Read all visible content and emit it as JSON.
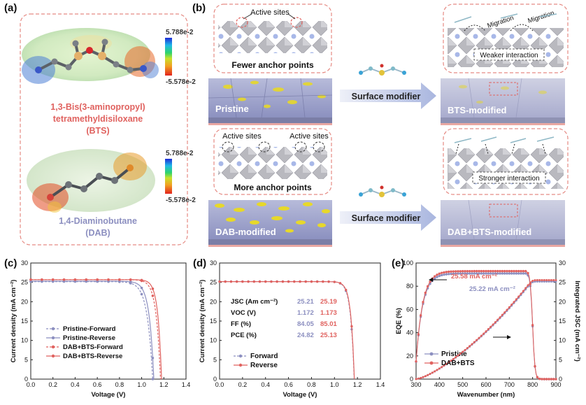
{
  "figure": {
    "panel_a": {
      "label": "(a)",
      "molecule1": {
        "name_lines": [
          "1,3-Bis(3-aminopropyl)",
          "tetramethyldisiloxane",
          "(BTS)"
        ],
        "scale_max": "5.788e-2",
        "scale_min": "-5.578e-2",
        "color": "#e0625f"
      },
      "molecule2": {
        "name_lines": [
          "1,4-Diaminobutane",
          "(DAB)"
        ],
        "scale_max": "5.788e-2",
        "scale_min": "-5.578e-2",
        "color": "#8c8fc0"
      }
    },
    "panel_b": {
      "label": "(b)",
      "top_left": {
        "callout": "Active sites",
        "caption": "Fewer anchor points",
        "slab": "Pristine"
      },
      "arrow_label": "Surface modifier",
      "top_right": {
        "migration_labels": [
          "Migration",
          "Migration"
        ],
        "caption": "Weaker interaction",
        "slab": "BTS-modified"
      },
      "bottom_left": {
        "callouts": [
          "Active sites",
          "Active sites"
        ],
        "caption": "More anchor points",
        "slab": "DAB-modified"
      },
      "bottom_right": {
        "caption": "Stronger interaction",
        "slab": "DAB+BTS-modified"
      }
    }
  },
  "chart_data": [
    {
      "panel": "(c)",
      "type": "line",
      "xlabel": "Voltage (V)",
      "ylabel": "Current density (mA cm⁻²)",
      "xlim": [
        0,
        1.4
      ],
      "ylim": [
        0,
        30
      ],
      "xticks": [
        "0.0",
        "0.2",
        "0.4",
        "0.6",
        "0.8",
        "1.0",
        "1.2",
        "1.4"
      ],
      "yticks": [
        "0",
        "5",
        "10",
        "15",
        "20",
        "25",
        "30"
      ],
      "legend_position": "lower-left",
      "series": [
        {
          "name": "Pristine-Forward",
          "color": "#8c8fc0",
          "dash": true,
          "jsc": 25.2,
          "voc": 1.1,
          "n": 1.9
        },
        {
          "name": "Pristine-Reverse",
          "color": "#8c8fc0",
          "dash": false,
          "jsc": 25.3,
          "voc": 1.11,
          "n": 1.6
        },
        {
          "name": "DAB+BTS-Forward",
          "color": "#e0625f",
          "dash": true,
          "jsc": 25.7,
          "voc": 1.17,
          "n": 1.5
        },
        {
          "name": "DAB+BTS-Reverse",
          "color": "#e0625f",
          "dash": false,
          "jsc": 25.7,
          "voc": 1.18,
          "n": 1.3
        }
      ]
    },
    {
      "panel": "(d)",
      "type": "line",
      "xlabel": "Voltage (V)",
      "ylabel": "Current density (mA cm⁻²)",
      "xlim": [
        0,
        1.4
      ],
      "ylim": [
        0,
        30
      ],
      "xticks": [
        "0.0",
        "0.2",
        "0.4",
        "0.6",
        "0.8",
        "1.0",
        "1.2",
        "1.4"
      ],
      "yticks": [
        "0",
        "5",
        "10",
        "15",
        "20",
        "25",
        "30"
      ],
      "legend_position": "lower-left",
      "series": [
        {
          "name": "Forward",
          "color": "#8c8fc0",
          "dash": true,
          "jsc": 25.21,
          "voc": 1.172,
          "n": 1.2
        },
        {
          "name": "Reverse",
          "color": "#e0625f",
          "dash": false,
          "jsc": 25.19,
          "voc": 1.173,
          "n": 1.15
        }
      ],
      "table": {
        "rows": [
          {
            "label": "JSC (Am cm⁻²)",
            "v1": "25.21",
            "v2": "25.19"
          },
          {
            "label": "VOC (V)",
            "v1": "1.172",
            "v2": "1.173"
          },
          {
            "label": "FF (%)",
            "v1": "84.05",
            "v2": "85.01"
          },
          {
            "label": "PCE (%)",
            "v1": "24.82",
            "v2": "25.13"
          }
        ]
      }
    },
    {
      "panel": "(e)",
      "type": "line",
      "xlabel": "Wavenumber (nm)",
      "ylabel": "EQE (%)",
      "ylabel_right": "Integrated JSC (mA cm⁻²)",
      "xlim": [
        300,
        900
      ],
      "ylim": [
        0,
        100
      ],
      "ylim_right": [
        0,
        30
      ],
      "xticks": [
        "300",
        "400",
        "500",
        "600",
        "700",
        "800",
        "900"
      ],
      "yticks": [
        "0",
        "20",
        "40",
        "60",
        "80",
        "100"
      ],
      "yticks_right": [
        "0",
        "5",
        "10",
        "15",
        "20",
        "25",
        "30"
      ],
      "legend_position": "lower-left",
      "annotations": [
        "25.58 mA cm⁻²",
        "25.22 mA cm⁻²"
      ],
      "series": [
        {
          "name": "Pristine",
          "color": "#8c8fc0",
          "integrated_end": 25.22
        },
        {
          "name": "DAB+BTS",
          "color": "#e0625f",
          "integrated_end": 25.58
        }
      ]
    }
  ]
}
